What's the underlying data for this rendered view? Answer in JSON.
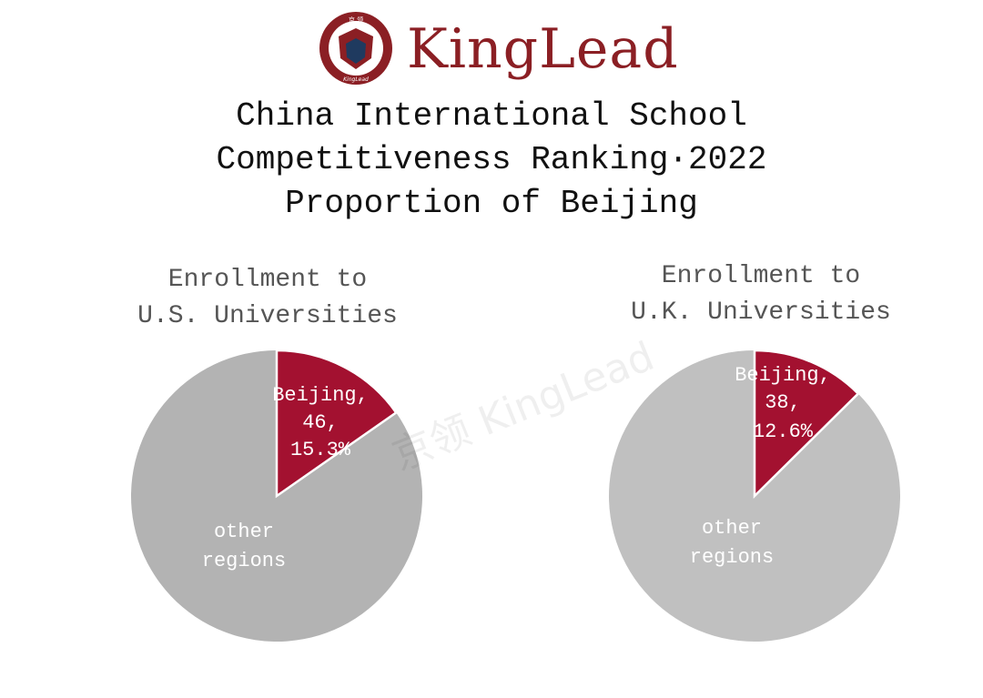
{
  "brand": {
    "name": "KingLead",
    "logo_text_cn": "京领",
    "logo_text_en": "KingLead",
    "color": "#8b1f24"
  },
  "title": {
    "line1": "China International School",
    "line2": "Competitiveness Ranking·2022",
    "line3": "Proportion of Beijing"
  },
  "watermark": "京领 KingLead",
  "chart_data": [
    {
      "type": "pie",
      "title_line1": "Enrollment to",
      "title_line2": "U.S. Universities",
      "slices": [
        {
          "label": "Beijing,",
          "value": 46,
          "percent": "15.3%",
          "value_text": "46,",
          "color": "#a31130"
        },
        {
          "label_line1": "other",
          "label_line2": "regions",
          "percent_value": 84.7,
          "color": "#b3b3b3"
        }
      ],
      "beijing_fraction": 0.153
    },
    {
      "type": "pie",
      "title_line1": "Enrollment to",
      "title_line2": "U.K. Universities",
      "slices": [
        {
          "label": "Beijing,",
          "value": 38,
          "percent": "12.6%",
          "value_text": "38,",
          "color": "#a31130"
        },
        {
          "label_line1": "other",
          "label_line2": "regions",
          "percent_value": 87.4,
          "color": "#c0c0c0"
        }
      ],
      "beijing_fraction": 0.126
    }
  ]
}
